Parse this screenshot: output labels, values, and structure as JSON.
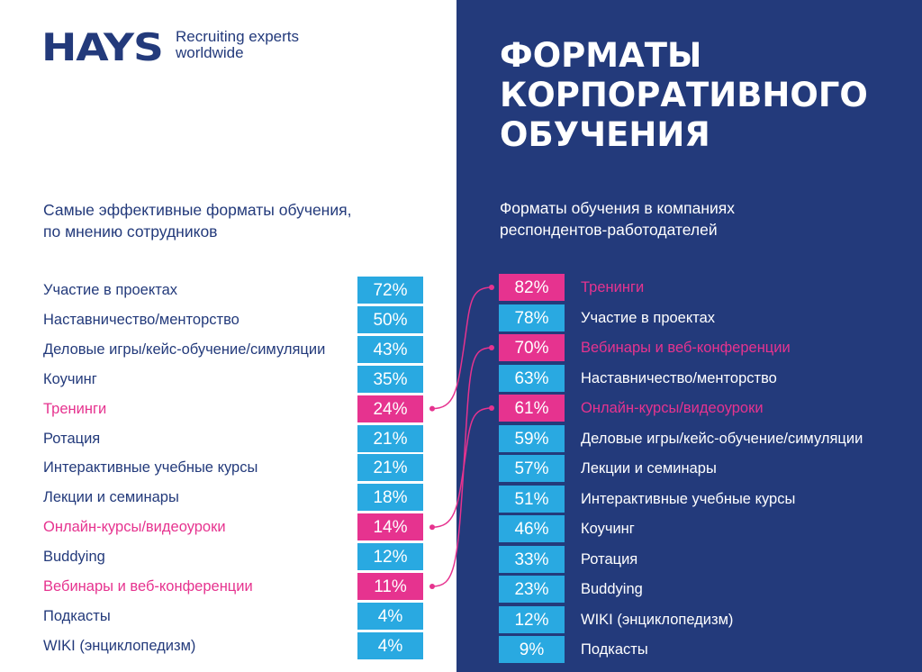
{
  "brand": {
    "logo": "HAYS",
    "tagline": "Recruiting experts worldwide"
  },
  "title": "ФОРМАТЫ\nКОРПОРАТИВНОГО\nОБУЧЕНИЯ",
  "colors": {
    "navy": "#233a7b",
    "cyan": "#29a9e1",
    "magenta": "#e6338f"
  },
  "left": {
    "subtitle": "Самые эффективные форматы обучения,\nпо мнению сотрудников"
  },
  "right": {
    "subtitle": "Форматы обучения в компаниях\nреспондентов-работодателей"
  },
  "chart_data": [
    {
      "type": "table",
      "title": "Самые эффективные форматы обучения, по мнению сотрудников",
      "rows": [
        {
          "label": "Участие в проектах",
          "value": "72%",
          "highlight": false
        },
        {
          "label": "Наставничество/менторство",
          "value": "50%",
          "highlight": false
        },
        {
          "label": "Деловые игры/кейс-обучение/симуляции",
          "value": "43%",
          "highlight": false
        },
        {
          "label": "Коучинг",
          "value": "35%",
          "highlight": false
        },
        {
          "label": "Тренинги",
          "value": "24%",
          "highlight": true
        },
        {
          "label": "Ротация",
          "value": "21%",
          "highlight": false
        },
        {
          "label": "Интерактивные учебные курсы",
          "value": "21%",
          "highlight": false
        },
        {
          "label": "Лекции и семинары",
          "value": "18%",
          "highlight": false
        },
        {
          "label": "Онлайн-курсы/видеоуроки",
          "value": "14%",
          "highlight": true
        },
        {
          "label": "Buddying",
          "value": "12%",
          "highlight": false
        },
        {
          "label": "Вебинары и веб-конференции",
          "value": "11%",
          "highlight": true
        },
        {
          "label": "Подкасты",
          "value": "4%",
          "highlight": false
        },
        {
          "label": "WIKI (энциклопедизм)",
          "value": "4%",
          "highlight": false
        }
      ]
    },
    {
      "type": "table",
      "title": "Форматы обучения в компаниях респондентов-работодателей",
      "rows": [
        {
          "label": "Тренинги",
          "value": "82%",
          "highlight": true
        },
        {
          "label": "Участие в проектах",
          "value": "78%",
          "highlight": false
        },
        {
          "label": "Вебинары и веб-конференции",
          "value": "70%",
          "highlight": true
        },
        {
          "label": "Наставничество/менторство",
          "value": "63%",
          "highlight": false
        },
        {
          "label": "Онлайн-курсы/видеоуроки",
          "value": "61%",
          "highlight": true
        },
        {
          "label": "Деловые игры/кейс-обучение/симуляции",
          "value": "59%",
          "highlight": false
        },
        {
          "label": "Лекции и семинары",
          "value": "57%",
          "highlight": false
        },
        {
          "label": "Интерактивные учебные курсы",
          "value": "51%",
          "highlight": false
        },
        {
          "label": "Коучинг",
          "value": "46%",
          "highlight": false
        },
        {
          "label": "Ротация",
          "value": "33%",
          "highlight": false
        },
        {
          "label": "Buddying",
          "value": "23%",
          "highlight": false
        },
        {
          "label": "WIKI (энциклопедизм)",
          "value": "12%",
          "highlight": false
        },
        {
          "label": "Подкасты",
          "value": "9%",
          "highlight": false
        }
      ]
    }
  ]
}
